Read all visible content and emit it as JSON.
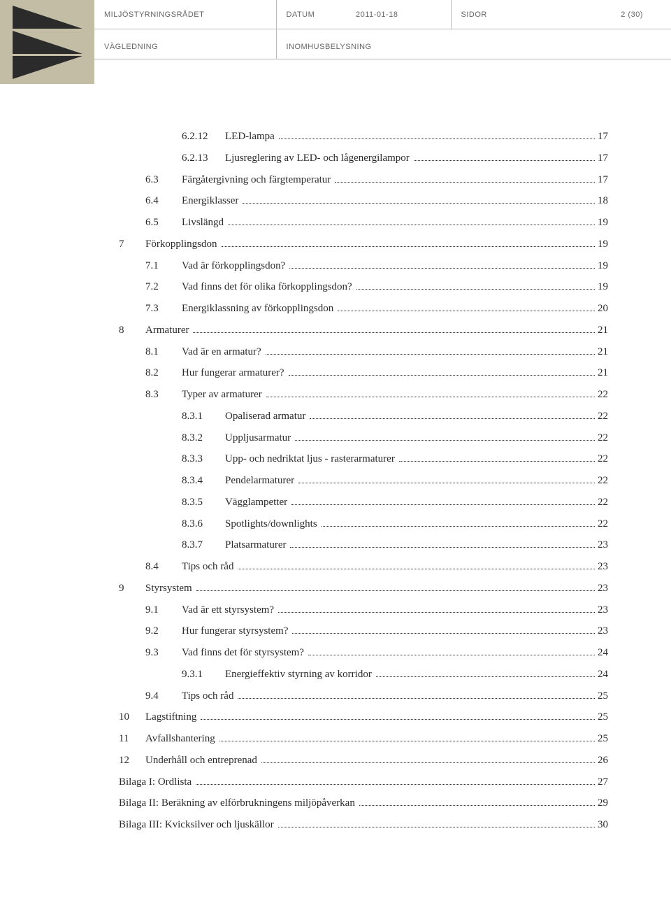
{
  "header": {
    "org": "MILJÖSTYRNINGSRÅDET",
    "date_label": "DATUM",
    "date_value": "2011-01-18",
    "pages_label": "SIDOR",
    "pages_value": "2 (30)",
    "doc_type": "VÄGLEDNING",
    "subject": "INOMHUSBELYSNING",
    "logo_bg": "#c4bda5",
    "logo_fg": "#2b2b2b"
  },
  "toc": [
    {
      "level": 3,
      "num": "6.2.12",
      "title": "LED-lampa",
      "page": "17"
    },
    {
      "level": 3,
      "num": "6.2.13",
      "title": "Ljusreglering av LED- och lågenergilampor",
      "page": "17"
    },
    {
      "level": 2,
      "num": "6.3",
      "title": "Färgåtergivning och färgtemperatur",
      "page": "17"
    },
    {
      "level": 2,
      "num": "6.4",
      "title": "Energiklasser",
      "page": "18"
    },
    {
      "level": 2,
      "num": "6.5",
      "title": "Livslängd",
      "page": "19"
    },
    {
      "level": 1,
      "num": "7",
      "title": "Förkopplingsdon",
      "page": "19"
    },
    {
      "level": 2,
      "num": "7.1",
      "title": "Vad är förkopplingsdon?",
      "page": "19"
    },
    {
      "level": 2,
      "num": "7.2",
      "title": "Vad finns det för olika förkopplingsdon?",
      "page": "19"
    },
    {
      "level": 2,
      "num": "7.3",
      "title": "Energiklassning av förkopplingsdon",
      "page": "20"
    },
    {
      "level": 1,
      "num": "8",
      "title": "Armaturer",
      "page": "21"
    },
    {
      "level": 2,
      "num": "8.1",
      "title": "Vad är en armatur?",
      "page": "21"
    },
    {
      "level": 2,
      "num": "8.2",
      "title": "Hur fungerar armaturer?",
      "page": "21"
    },
    {
      "level": 2,
      "num": "8.3",
      "title": "Typer av armaturer",
      "page": "22"
    },
    {
      "level": 3,
      "num": "8.3.1",
      "title": "Opaliserad armatur",
      "page": "22"
    },
    {
      "level": 3,
      "num": "8.3.2",
      "title": "Uppljusarmatur",
      "page": "22"
    },
    {
      "level": 3,
      "num": "8.3.3",
      "title": "Upp- och nedriktat ljus - rasterarmaturer",
      "page": "22"
    },
    {
      "level": 3,
      "num": "8.3.4",
      "title": "Pendelarmaturer",
      "page": "22"
    },
    {
      "level": 3,
      "num": "8.3.5",
      "title": "Vägglampetter",
      "page": "22"
    },
    {
      "level": 3,
      "num": "8.3.6",
      "title": "Spotlights/downlights",
      "page": "22"
    },
    {
      "level": 3,
      "num": "8.3.7",
      "title": "Platsarmaturer",
      "page": "23"
    },
    {
      "level": 2,
      "num": "8.4",
      "title": "Tips och råd",
      "page": "23"
    },
    {
      "level": 1,
      "num": "9",
      "title": "Styrsystem",
      "page": "23"
    },
    {
      "level": 2,
      "num": "9.1",
      "title": "Vad är ett styrsystem?",
      "page": "23"
    },
    {
      "level": 2,
      "num": "9.2",
      "title": "Hur fungerar styrsystem?",
      "page": "23"
    },
    {
      "level": 2,
      "num": "9.3",
      "title": "Vad finns det för styrsystem?",
      "page": "24"
    },
    {
      "level": 3,
      "num": "9.3.1",
      "title": "Energieffektiv styrning av korridor",
      "page": "24"
    },
    {
      "level": 2,
      "num": "9.4",
      "title": "Tips och råd",
      "page": "25"
    },
    {
      "level": 1,
      "num": "10",
      "title": "Lagstiftning",
      "page": "25"
    },
    {
      "level": 1,
      "num": "11",
      "title": "Avfallshantering",
      "page": "25"
    },
    {
      "level": 1,
      "num": "12",
      "title": "Underhåll och entreprenad",
      "page": "26"
    },
    {
      "level": 0,
      "num": "",
      "title": "Bilaga I: Ordlista",
      "page": "27"
    },
    {
      "level": 0,
      "num": "",
      "title": "Bilaga II: Beräkning av elförbrukningens miljöpåverkan",
      "page": "29"
    },
    {
      "level": 0,
      "num": "",
      "title": "Bilaga III: Kvicksilver och ljuskällor",
      "page": "30"
    }
  ]
}
